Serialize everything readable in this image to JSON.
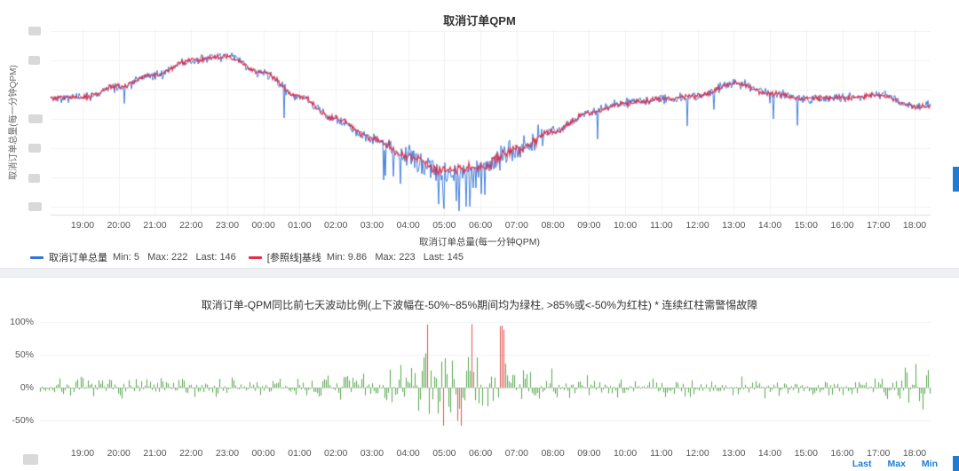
{
  "accent": {
    "link_blue": "#1f7bd4",
    "scrollbar_blue": "#1f7bd4",
    "redaction_gray": "#d9d9d9"
  },
  "time_ticks": [
    "19:00",
    "20:00",
    "21:00",
    "22:00",
    "23:00",
    "00:00",
    "01:00",
    "02:00",
    "03:00",
    "04:00",
    "05:00",
    "06:00",
    "07:00",
    "08:00",
    "09:00",
    "10:00",
    "11:00",
    "12:00",
    "13:00",
    "14:00",
    "15:00",
    "16:00",
    "17:00",
    "18:00"
  ],
  "panel_qpm": {
    "title": "取消订单QPM",
    "y_axis_label": "取消订单总量(每一分钟QPM)",
    "x_axis_label": "取消订单总量(每一分钟QPM)",
    "legend": [
      {
        "label": "取消订单总量",
        "stats": "Min: 5   Max: 222   Last: 146",
        "color": "#3274d9"
      },
      {
        "label": "[参照线]基线",
        "stats": "Min: 9.86   Max: 223   Last: 145",
        "color": "#e0304a"
      }
    ]
  },
  "panel_fluct": {
    "title": "取消订单-QPM同比前七天波动比例(上下波幅在-50%~85%期间均为绿柱,  >85%或<-50%为红柱) * 连续红柱需警惕故障",
    "y_ticks": [
      "100%",
      "50%",
      "0%",
      "-50%"
    ],
    "links": [
      "Last",
      "Max",
      "Min"
    ]
  },
  "chart_data": [
    {
      "type": "line",
      "title": "取消订单QPM",
      "x_tick_labels": [
        "19:00",
        "20:00",
        "21:00",
        "22:00",
        "23:00",
        "00:00",
        "01:00",
        "02:00",
        "03:00",
        "04:00",
        "05:00",
        "06:00",
        "07:00",
        "08:00",
        "09:00",
        "10:00",
        "11:00",
        "12:00",
        "13:00",
        "14:00",
        "15:00",
        "16:00",
        "17:00",
        "18:00"
      ],
      "xlabel": "取消订单总量(每一分钟QPM)",
      "ylabel": "取消订单总量(每一分钟QPM)",
      "ylim": [
        0,
        250
      ],
      "y_axis_tick_labels_redacted": true,
      "series": [
        {
          "name": "取消订单总量",
          "color": "#3274d9",
          "min": 5,
          "max": 222,
          "last": 146,
          "hourly": [
            158,
            172,
            188,
            207,
            214,
            190,
            158,
            128,
            102,
            78,
            57,
            63,
            88,
            113,
            138,
            151,
            156,
            159,
            178,
            164,
            156,
            158,
            162,
            147
          ]
        },
        {
          "name": "[参照线]基线",
          "color": "#e0304a",
          "min": 9.86,
          "max": 223,
          "last": 145,
          "hourly": [
            158,
            173,
            189,
            208,
            213,
            191,
            159,
            129,
            103,
            79,
            59,
            64,
            88,
            112,
            137,
            150,
            156,
            160,
            177,
            163,
            156,
            158,
            161,
            146
          ]
        }
      ]
    },
    {
      "type": "bar",
      "title": "取消订单-QPM同比前七天波动比例(上下波幅在-50%~85%期间均为绿柱,  >85%或<-50%为红柱) * 连续红柱需警惕故障",
      "x_tick_labels": [
        "19:00",
        "20:00",
        "21:00",
        "22:00",
        "23:00",
        "00:00",
        "01:00",
        "02:00",
        "03:00",
        "04:00",
        "05:00",
        "06:00",
        "07:00",
        "08:00",
        "09:00",
        "10:00",
        "11:00",
        "12:00",
        "13:00",
        "14:00",
        "15:00",
        "16:00",
        "17:00",
        "18:00"
      ],
      "y_ticks_pct": [
        100,
        50,
        0,
        -50
      ],
      "ylim_pct": [
        -75,
        110
      ],
      "green_range_pct": [
        -50,
        85
      ],
      "red_threshold": 85,
      "red_threshold_low": -50,
      "green": "#56a64b",
      "red": "#e05050",
      "red_spike_window": [
        "04:00",
        "06:30"
      ],
      "hourly_amplitude_pct": [
        14,
        14,
        14,
        15,
        16,
        14,
        14,
        18,
        26,
        46,
        56,
        50,
        34,
        22,
        14,
        13,
        13,
        13,
        14,
        13,
        13,
        14,
        22,
        40
      ]
    }
  ]
}
